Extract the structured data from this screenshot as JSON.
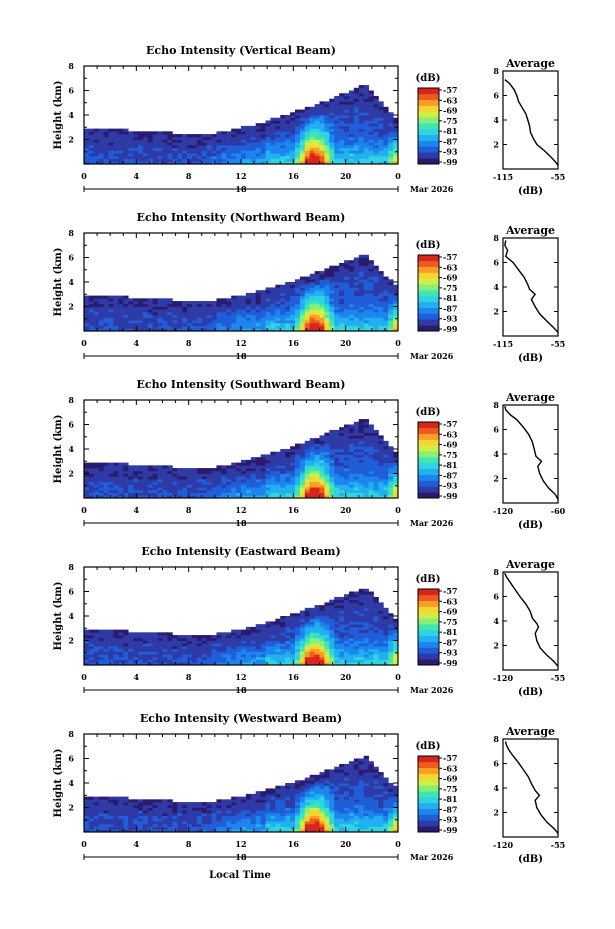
{
  "figure": {
    "xlabel": "Local Time",
    "date_label": "Mar 2026"
  },
  "chart_data": [
    {
      "type": "heatmap",
      "title": "Echo Intensity (Vertical Beam)",
      "xlabel": "",
      "ylabel": "Height (km)",
      "x_ticks": [
        "0",
        "4",
        "8",
        "12",
        "16",
        "20",
        "0"
      ],
      "day_label": "18",
      "date_label": "Mar 2026",
      "xlim": [
        0,
        24
      ],
      "ylim": [
        0,
        8
      ],
      "y_ticks": [
        "2",
        "4",
        "6",
        "8"
      ],
      "colorbar": {
        "unit": "(dB)",
        "labels": [
          "-57",
          "-63",
          "-69",
          "-75",
          "-81",
          "-87",
          "-93",
          "-99"
        ]
      },
      "shape": {
        "base": 3,
        "bump_center": 21.5,
        "bump_height": 6.5
      },
      "profile": {
        "title": "Average",
        "xlabel": "(dB)",
        "xlim": [
          -115,
          -55
        ],
        "ylim": [
          0,
          8
        ],
        "x_ticks": [
          "-115",
          "-55"
        ],
        "y_ticks": [
          "2",
          "4",
          "6",
          "8"
        ],
        "height": [
          0.3,
          0.6,
          1.0,
          1.5,
          2.0,
          2.5,
          3.0,
          3.5,
          4.0,
          4.5,
          5.0,
          5.5,
          6.0,
          6.5,
          7.0,
          7.3
        ],
        "db": [
          -55,
          -58,
          -63,
          -70,
          -78,
          -82,
          -85,
          -86,
          -88,
          -90,
          -94,
          -98,
          -100,
          -103,
          -108,
          -113
        ]
      }
    },
    {
      "type": "heatmap",
      "title": "Echo Intensity (Northward Beam)",
      "xlabel": "",
      "ylabel": "Height (km)",
      "x_ticks": [
        "0",
        "4",
        "8",
        "12",
        "16",
        "20",
        "0"
      ],
      "day_label": "18",
      "date_label": "Mar 2026",
      "xlim": [
        0,
        24
      ],
      "ylim": [
        0,
        8
      ],
      "y_ticks": [
        "2",
        "4",
        "6",
        "8"
      ],
      "colorbar": {
        "unit": "(dB)",
        "labels": [
          "-57",
          "-63",
          "-69",
          "-75",
          "-81",
          "-87",
          "-93",
          "-99"
        ]
      },
      "shape": {
        "base": 3,
        "bump_center": 21.5,
        "bump_height": 6.3
      },
      "profile": {
        "title": "Average",
        "xlabel": "(dB)",
        "xlim": [
          -115,
          -55
        ],
        "ylim": [
          0,
          8
        ],
        "x_ticks": [
          "-115",
          "-55"
        ],
        "y_ticks": [
          "2",
          "4",
          "6",
          "8"
        ],
        "height": [
          0.3,
          0.7,
          1.2,
          1.8,
          2.4,
          3.0,
          3.4,
          3.8,
          4.2,
          4.8,
          5.4,
          6.0,
          6.5,
          7.0,
          7.4,
          7.8
        ],
        "db": [
          -55,
          -60,
          -67,
          -75,
          -80,
          -84,
          -80,
          -86,
          -88,
          -92,
          -98,
          -104,
          -112,
          -110,
          -113,
          -112
        ]
      }
    },
    {
      "type": "heatmap",
      "title": "Echo Intensity (Southward Beam)",
      "xlabel": "",
      "ylabel": "Height (km)",
      "x_ticks": [
        "0",
        "4",
        "8",
        "12",
        "16",
        "20",
        "0"
      ],
      "day_label": "18",
      "date_label": "Mar 2026",
      "xlim": [
        0,
        24
      ],
      "ylim": [
        0,
        8
      ],
      "y_ticks": [
        "2",
        "4",
        "6",
        "8"
      ],
      "colorbar": {
        "unit": "(dB)",
        "labels": [
          "-57",
          "-63",
          "-69",
          "-75",
          "-81",
          "-87",
          "-93",
          "-99"
        ]
      },
      "shape": {
        "base": 3,
        "bump_center": 21.5,
        "bump_height": 6.6
      },
      "profile": {
        "title": "Average",
        "xlabel": "(dB)",
        "xlim": [
          -120,
          -60
        ],
        "ylim": [
          0,
          8
        ],
        "x_ticks": [
          "-120",
          "-60"
        ],
        "y_ticks": [
          "2",
          "4",
          "6",
          "8"
        ],
        "height": [
          0.3,
          0.7,
          1.2,
          1.8,
          2.4,
          3.0,
          3.4,
          3.8,
          4.4,
          5.0,
          5.6,
          6.2,
          6.8,
          7.2,
          7.6,
          7.9
        ],
        "db": [
          -60,
          -63,
          -70,
          -76,
          -80,
          -82,
          -78,
          -84,
          -86,
          -88,
          -92,
          -98,
          -105,
          -112,
          -117,
          -118
        ]
      }
    },
    {
      "type": "heatmap",
      "title": "Echo Intensity (Eastward Beam)",
      "xlabel": "",
      "ylabel": "Height (km)",
      "x_ticks": [
        "0",
        "4",
        "8",
        "12",
        "16",
        "20",
        "0"
      ],
      "day_label": "18",
      "date_label": "Mar 2026",
      "xlim": [
        0,
        24
      ],
      "ylim": [
        0,
        8
      ],
      "y_ticks": [
        "2",
        "4",
        "6",
        "8"
      ],
      "colorbar": {
        "unit": "(dB)",
        "labels": [
          "-57",
          "-63",
          "-69",
          "-75",
          "-81",
          "-87",
          "-93",
          "-99"
        ]
      },
      "shape": {
        "base": 3,
        "bump_center": 21.5,
        "bump_height": 6.4
      },
      "profile": {
        "title": "Average",
        "xlabel": "(dB)",
        "xlim": [
          -120,
          -55
        ],
        "ylim": [
          0,
          8
        ],
        "x_ticks": [
          "-120",
          "-55"
        ],
        "y_ticks": [
          "2",
          "4",
          "6",
          "8"
        ],
        "height": [
          0.3,
          0.7,
          1.2,
          1.8,
          2.4,
          3.0,
          3.5,
          3.8,
          4.2,
          4.8,
          5.4,
          6.0,
          6.6,
          7.2,
          7.6,
          7.9
        ],
        "db": [
          -55,
          -60,
          -68,
          -76,
          -80,
          -82,
          -78,
          -80,
          -85,
          -88,
          -93,
          -100,
          -106,
          -112,
          -116,
          -118
        ]
      }
    },
    {
      "type": "heatmap",
      "title": "Echo Intensity (Westward Beam)",
      "xlabel": "",
      "ylabel": "Height (km)",
      "x_ticks": [
        "0",
        "4",
        "8",
        "12",
        "16",
        "20",
        "0"
      ],
      "day_label": "18",
      "date_label": "Mar 2026",
      "xlim": [
        0,
        24
      ],
      "ylim": [
        0,
        8
      ],
      "y_ticks": [
        "2",
        "4",
        "6",
        "8"
      ],
      "colorbar": {
        "unit": "(dB)",
        "labels": [
          "-57",
          "-63",
          "-69",
          "-75",
          "-81",
          "-87",
          "-93",
          "-99"
        ]
      },
      "shape": {
        "base": 3,
        "bump_center": 21.5,
        "bump_height": 6.2
      },
      "profile": {
        "title": "Average",
        "xlabel": "(dB)",
        "xlim": [
          -120,
          -55
        ],
        "ylim": [
          0,
          8
        ],
        "x_ticks": [
          "-120",
          "-55"
        ],
        "y_ticks": [
          "2",
          "4",
          "6",
          "8"
        ],
        "height": [
          0.3,
          0.7,
          1.2,
          1.8,
          2.4,
          3.0,
          3.4,
          3.8,
          4.3,
          4.9,
          5.5,
          6.1,
          6.6,
          7.1,
          7.5,
          7.8
        ],
        "db": [
          -55,
          -60,
          -68,
          -75,
          -80,
          -82,
          -77,
          -82,
          -86,
          -90,
          -96,
          -102,
          -108,
          -113,
          -116,
          -117
        ]
      }
    }
  ],
  "palette": [
    "#2b1b6e",
    "#2e3aa6",
    "#1f5ed8",
    "#1d86ee",
    "#21b0f0",
    "#2fd4e0",
    "#3fe6b2",
    "#86ef7a",
    "#d2ee44",
    "#f6d531",
    "#f89d27",
    "#ee5b1f",
    "#d7261c"
  ]
}
